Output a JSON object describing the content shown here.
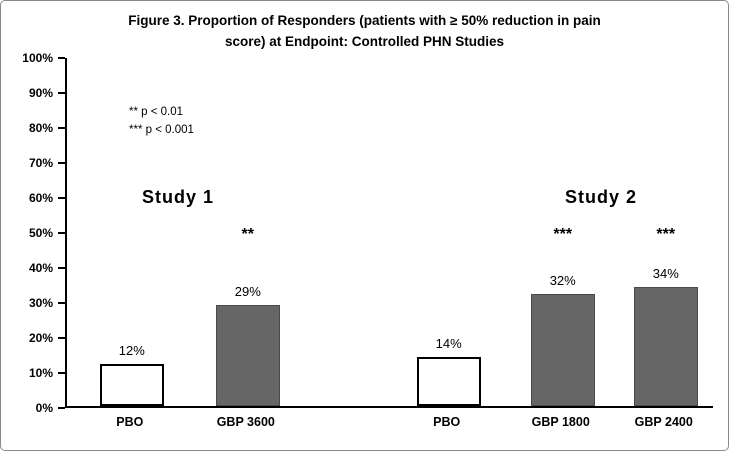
{
  "annotations": {
    "sig_p01": "** p < 0.01",
    "sig_p001": "*** p < 0.001",
    "study1": "Study 1",
    "study2": "Study 2"
  },
  "chart_data": {
    "type": "bar",
    "title": "Figure 3. Proportion of Responders (patients with ≥ 50% reduction in pain score) at Endpoint: Controlled PHN Studies",
    "categories": [
      "PBO",
      "GBP 3600",
      "PBO",
      "GBP 1800",
      "GBP 2400"
    ],
    "values": [
      12,
      29,
      14,
      32,
      34
    ],
    "bar_labels": [
      "12%",
      "29%",
      "14%",
      "32%",
      "34%"
    ],
    "significance": [
      "",
      "**",
      "",
      "***",
      "***"
    ],
    "bar_colors": [
      "#ffffff",
      "#666666",
      "#ffffff",
      "#666666",
      "#666666"
    ],
    "groups": [
      {
        "label": "Study 1",
        "categories": [
          "PBO",
          "GBP 3600"
        ]
      },
      {
        "label": "Study 2",
        "categories": [
          "PBO",
          "GBP 1800",
          "GBP 2400"
        ]
      }
    ],
    "xlabel": "",
    "ylabel": "",
    "ylim": [
      0,
      100
    ],
    "ytick_step": 10,
    "ytick_labels": [
      "0%",
      "10%",
      "20%",
      "30%",
      "40%",
      "50%",
      "60%",
      "70%",
      "80%",
      "90%",
      "100%"
    ],
    "grid": false,
    "legend_position": "none"
  }
}
